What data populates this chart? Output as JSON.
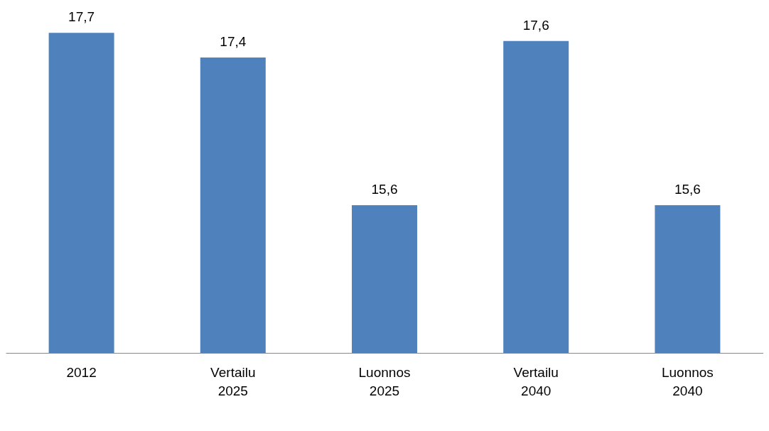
{
  "chart_data": {
    "type": "bar",
    "categories": [
      "2012",
      "Vertailu 2025",
      "Luonnos 2025",
      "Vertailu 2040",
      "Luonnos 2040"
    ],
    "values": [
      17.7,
      17.4,
      15.6,
      17.6,
      15.6
    ],
    "color": "#4f81bd",
    "ylim": [
      13.8,
      18.1
    ],
    "data_labels": true,
    "value_labels": [
      "17,7",
      "17,4",
      "15,6",
      "17,6",
      "15,6"
    ],
    "tick_labels": "x",
    "grid": false
  }
}
